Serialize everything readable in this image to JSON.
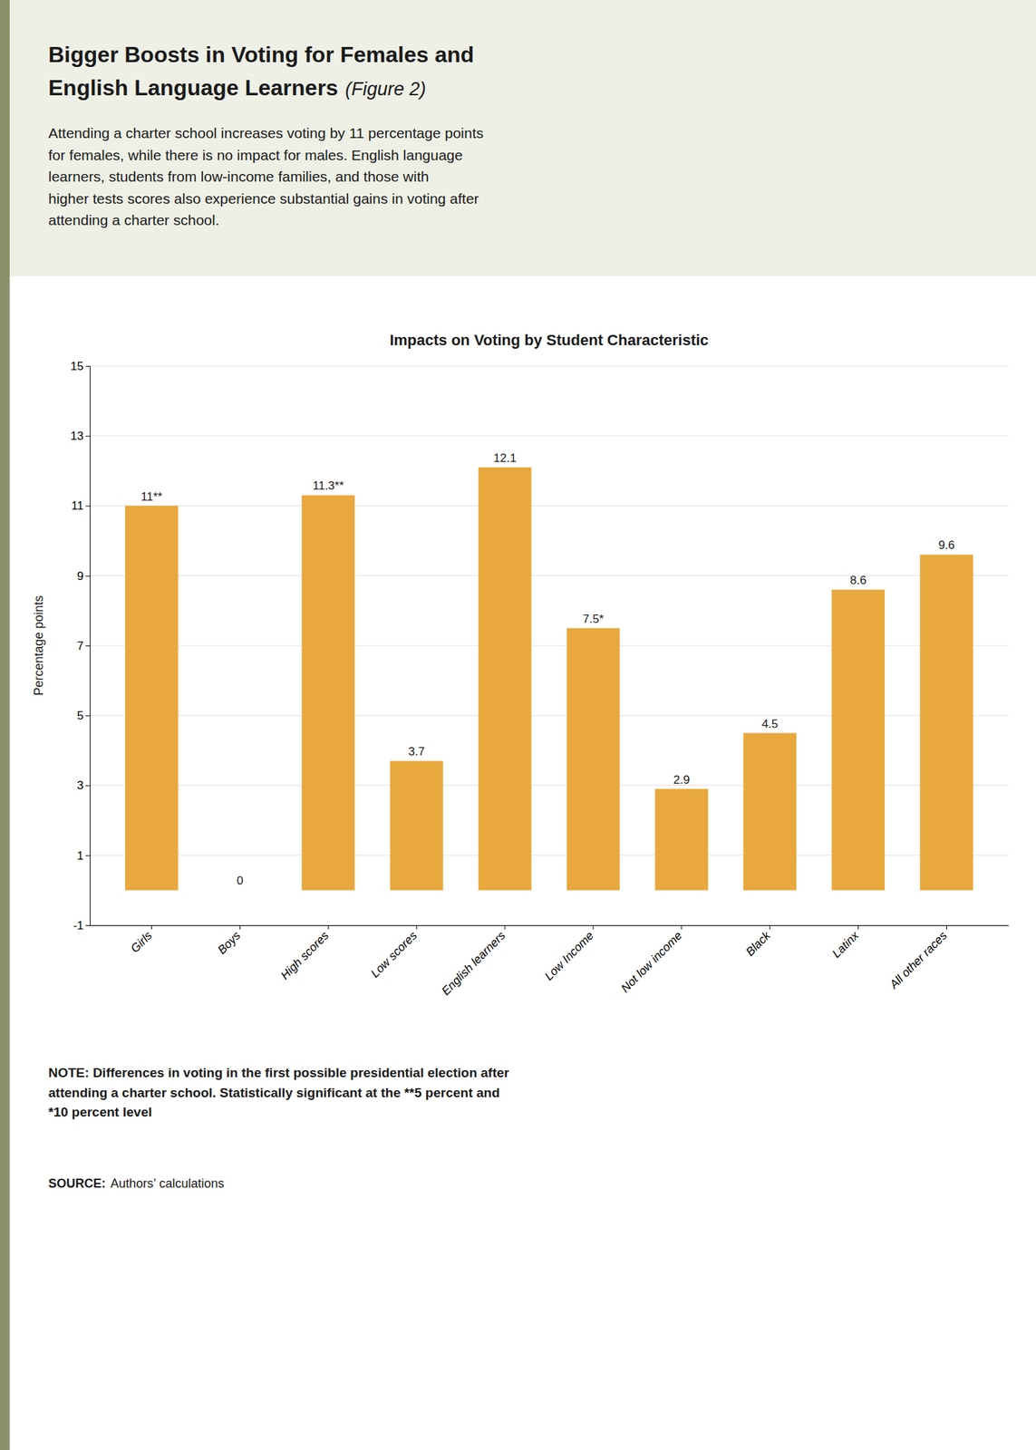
{
  "chart_data": {
    "type": "bar",
    "title": "Impacts on Voting by Student Characteristic",
    "subtitle": "Attending a charter school increases voting by 11 percentage points\nfor females, while there is no impact for males. English language\nlearners, students from low-income families, and those with\nhigher tests scores also experience substantial gains in voting after\nattending a charter school.",
    "annotations": [
      "Bigger Boosts in Voting for Females and",
      "English Language Learners",
      "(Figure 2)",
      "NOTE: Differences in voting in the first possible presidential election after\nattending a charter school. Statistically significant at the **5 percent and\n*10 percent level",
      "SOURCE:",
      "Authors’ calculations"
    ],
    "ylabel": "Percentage points",
    "categories": [
      "Girls",
      "Boys",
      "High scores",
      "Low scores",
      "English learners",
      "Low Income",
      "Not low income",
      "Black",
      "Latinx",
      "All other races"
    ],
    "values": [
      11.0,
      0.0,
      11.3,
      3.7,
      12.1,
      7.5,
      2.9,
      4.5,
      8.6,
      9.6
    ],
    "value_labels": [
      "11**",
      "0",
      "11.3**",
      "3.7",
      "12.1",
      "7.5*",
      "2.9",
      "4.5",
      "8.6",
      "9.6"
    ],
    "data_labels": true,
    "color": "#E8A83E",
    "ylim": [
      -1,
      15
    ],
    "yticks": [
      -1,
      1,
      3,
      5,
      7,
      9,
      11,
      13,
      15
    ],
    "grid": true
  }
}
